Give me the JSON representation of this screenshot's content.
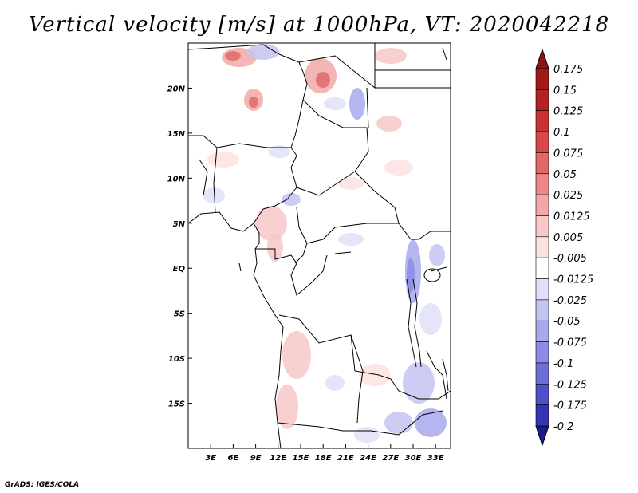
{
  "title": "Vertical velocity [m/s] at 1000hPa, VT: 2020042218",
  "credit": "GrADS: IGES/COLA",
  "map": {
    "lon_range": [
      0,
      35
    ],
    "lat_range": [
      -20,
      25
    ],
    "lat_ticks": [
      {
        "value": 20,
        "label": "20N"
      },
      {
        "value": 15,
        "label": "15N"
      },
      {
        "value": 10,
        "label": "10N"
      },
      {
        "value": 5,
        "label": "5N"
      },
      {
        "value": 0,
        "label": "EQ"
      },
      {
        "value": -5,
        "label": "5S"
      },
      {
        "value": -10,
        "label": "10S"
      },
      {
        "value": -15,
        "label": "15S"
      }
    ],
    "lon_ticks": [
      {
        "value": 3,
        "label": "3E"
      },
      {
        "value": 6,
        "label": "6E"
      },
      {
        "value": 9,
        "label": "9E"
      },
      {
        "value": 12,
        "label": "12E"
      },
      {
        "value": 15,
        "label": "15E"
      },
      {
        "value": 18,
        "label": "18E"
      },
      {
        "value": 21,
        "label": "21E"
      },
      {
        "value": 24,
        "label": "24E"
      },
      {
        "value": 27,
        "label": "27E"
      },
      {
        "value": 30,
        "label": "30E"
      },
      {
        "value": 33,
        "label": "33E"
      }
    ]
  },
  "colorbar": {
    "levels": [
      {
        "label": "0.175",
        "color": "#a01a1a"
      },
      {
        "label": "0.15",
        "color": "#b52222"
      },
      {
        "label": "0.125",
        "color": "#c83232"
      },
      {
        "label": "0.1",
        "color": "#d84848"
      },
      {
        "label": "0.075",
        "color": "#e26868"
      },
      {
        "label": "0.05",
        "color": "#ea8888"
      },
      {
        "label": "0.025",
        "color": "#f2a8a8"
      },
      {
        "label": "0.0125",
        "color": "#f8c8c8"
      },
      {
        "label": "0.005",
        "color": "#fbe2e2"
      },
      {
        "label": "-0.005",
        "color": "#ffffff"
      },
      {
        "label": "-0.0125",
        "color": "#e0e0f8"
      },
      {
        "label": "-0.025",
        "color": "#c4c4f2"
      },
      {
        "label": "-0.05",
        "color": "#a8a8ec"
      },
      {
        "label": "-0.075",
        "color": "#8c8ce4"
      },
      {
        "label": "-0.1",
        "color": "#6e6ed8"
      },
      {
        "label": "-0.125",
        "color": "#5050c8"
      },
      {
        "label": "-0.175",
        "color": "#3434b4"
      },
      {
        "label": "-0.2",
        "color": "#22229e"
      }
    ],
    "top_color": "#8c1414",
    "bottom_color": "#1a1a8a"
  }
}
